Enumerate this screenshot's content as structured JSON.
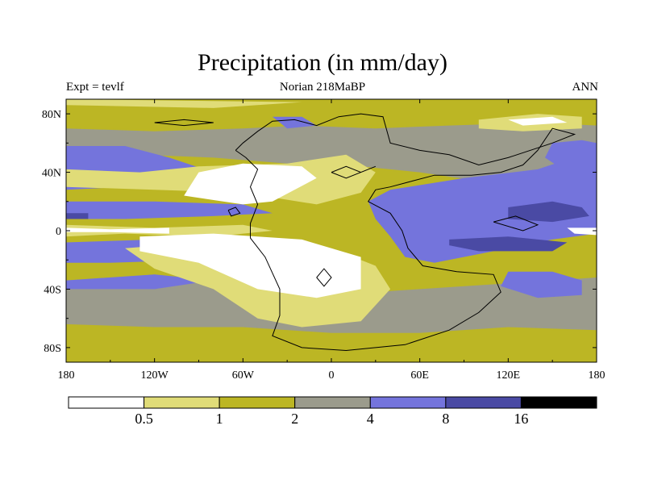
{
  "chart_data": {
    "type": "heatmap",
    "title": "Precipitation (in mm/day)",
    "subtitle_left": "Expt = tevlf",
    "subtitle_center": "Norian 218MaBP",
    "subtitle_right": "ANN",
    "x_ticks": [
      {
        "value": -180,
        "label": "180"
      },
      {
        "value": -120,
        "label": "120W"
      },
      {
        "value": -60,
        "label": "60W"
      },
      {
        "value": 0,
        "label": "0"
      },
      {
        "value": 60,
        "label": "60E"
      },
      {
        "value": 120,
        "label": "120E"
      },
      {
        "value": 180,
        "label": "180"
      }
    ],
    "y_ticks": [
      {
        "value": 80,
        "label": "80N"
      },
      {
        "value": 40,
        "label": "40N"
      },
      {
        "value": 0,
        "label": "0"
      },
      {
        "value": -40,
        "label": "40S"
      },
      {
        "value": -80,
        "label": "80S"
      }
    ],
    "xlim": [
      -180,
      180
    ],
    "ylim": [
      -90,
      90
    ],
    "levels": [
      0.5,
      1,
      2,
      4,
      8,
      16
    ],
    "level_labels": [
      "0.5",
      "1",
      "2",
      "4",
      "8",
      "16"
    ],
    "bin_colors": [
      "#ffffff",
      "#e0dc78",
      "#bcb624",
      "#9b9b8c",
      "#7474dc",
      "#4a4aa4",
      "#000000"
    ],
    "land_outline_color": "#000000"
  }
}
